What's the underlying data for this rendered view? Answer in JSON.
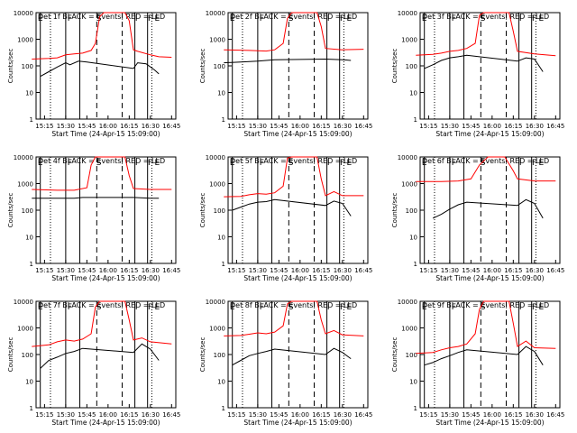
{
  "chart_data": {
    "type": "line",
    "layout": "3x3 grid of panels",
    "yscale": "log",
    "ylim": [
      1,
      10000
    ],
    "yticks": [
      "1",
      "10",
      "100",
      "1000",
      "10000"
    ],
    "ylabel": "Counts/sec",
    "xlabel": "Start Time (24-Apr-15 15:09:00)",
    "xticks": [
      "15:15",
      "15:30",
      "15:45",
      "16:00",
      "16:15",
      "16:30",
      "16:45"
    ],
    "legend_series": [
      {
        "name": "Events",
        "color": "#000000"
      },
      {
        "name": "LLD",
        "color": "#ff0000"
      }
    ],
    "markers": {
      "E": "15:09",
      "F": "15:30",
      "S": "15:52",
      "I": "16:19",
      "E2": "16:28"
    },
    "panels": [
      {
        "title": "Det 1f BLACK = Events, RED = LLD",
        "red": [
          [
            15.1,
            180
          ],
          [
            15.3,
            190
          ],
          [
            15.4,
            200
          ],
          [
            15.5,
            260
          ],
          [
            15.6,
            280
          ],
          [
            15.7,
            300
          ],
          [
            15.8,
            380
          ],
          [
            15.85,
            700
          ],
          [
            15.9,
            7000
          ],
          [
            15.95,
            10000
          ],
          [
            16.2,
            10000
          ],
          [
            16.25,
            5000
          ],
          [
            16.3,
            400
          ],
          [
            16.35,
            350
          ],
          [
            16.5,
            260
          ],
          [
            16.6,
            220
          ],
          [
            16.75,
            210
          ]
        ],
        "black": [
          [
            15.2,
            40
          ],
          [
            15.3,
            60
          ],
          [
            15.4,
            90
          ],
          [
            15.5,
            130
          ],
          [
            15.55,
            110
          ],
          [
            15.65,
            150
          ],
          [
            15.75,
            140
          ],
          [
            16.3,
            80
          ],
          [
            16.35,
            130
          ],
          [
            16.45,
            120
          ],
          [
            16.55,
            70
          ],
          [
            16.6,
            50
          ]
        ]
      },
      {
        "title": "Det 2f BLACK = Events, RED = LLD",
        "red": [
          [
            15.1,
            400
          ],
          [
            15.4,
            380
          ],
          [
            15.6,
            360
          ],
          [
            15.7,
            400
          ],
          [
            15.8,
            700
          ],
          [
            15.85,
            6000
          ],
          [
            15.9,
            10000
          ],
          [
            16.2,
            10000
          ],
          [
            16.25,
            3000
          ],
          [
            16.3,
            450
          ],
          [
            16.5,
            400
          ],
          [
            16.75,
            420
          ]
        ],
        "black": [
          [
            15.1,
            130
          ],
          [
            15.3,
            140
          ],
          [
            15.5,
            150
          ],
          [
            15.7,
            170
          ],
          [
            16.3,
            180
          ],
          [
            16.5,
            170
          ],
          [
            16.6,
            160
          ]
        ]
      },
      {
        "title": "Det 3f BLACK = Events, RED = LLD",
        "red": [
          [
            15.1,
            250
          ],
          [
            15.3,
            270
          ],
          [
            15.4,
            300
          ],
          [
            15.5,
            350
          ],
          [
            15.6,
            380
          ],
          [
            15.7,
            450
          ],
          [
            15.8,
            700
          ],
          [
            15.85,
            8000
          ],
          [
            15.9,
            10000
          ],
          [
            16.2,
            10000
          ],
          [
            16.25,
            2000
          ],
          [
            16.3,
            350
          ],
          [
            16.5,
            280
          ],
          [
            16.75,
            240
          ]
        ],
        "black": [
          [
            15.2,
            80
          ],
          [
            15.3,
            110
          ],
          [
            15.4,
            160
          ],
          [
            15.5,
            200
          ],
          [
            15.6,
            220
          ],
          [
            15.7,
            250
          ],
          [
            16.3,
            150
          ],
          [
            16.4,
            200
          ],
          [
            16.5,
            180
          ],
          [
            16.6,
            60
          ]
        ]
      },
      {
        "title": "Det 4f BLACK = Events, RED = LLD",
        "red": [
          [
            15.1,
            600
          ],
          [
            15.4,
            560
          ],
          [
            15.6,
            560
          ],
          [
            15.75,
            700
          ],
          [
            15.8,
            5000
          ],
          [
            15.85,
            10000
          ],
          [
            16.2,
            10000
          ],
          [
            16.25,
            2000
          ],
          [
            16.3,
            650
          ],
          [
            16.5,
            600
          ],
          [
            16.75,
            600
          ]
        ],
        "black": [
          [
            15.1,
            280
          ],
          [
            15.4,
            280
          ],
          [
            15.6,
            280
          ],
          [
            15.7,
            300
          ],
          [
            16.3,
            300
          ],
          [
            16.5,
            280
          ],
          [
            16.6,
            280
          ]
        ]
      },
      {
        "title": "Det 5f BLACK = Events, RED = LLD",
        "red": [
          [
            15.1,
            320
          ],
          [
            15.3,
            330
          ],
          [
            15.4,
            380
          ],
          [
            15.5,
            420
          ],
          [
            15.6,
            400
          ],
          [
            15.7,
            450
          ],
          [
            15.8,
            800
          ],
          [
            15.85,
            9000
          ],
          [
            15.9,
            10000
          ],
          [
            16.2,
            10000
          ],
          [
            16.25,
            1500
          ],
          [
            16.3,
            350
          ],
          [
            16.4,
            500
          ],
          [
            16.5,
            350
          ],
          [
            16.75,
            350
          ]
        ],
        "black": [
          [
            15.2,
            100
          ],
          [
            15.3,
            130
          ],
          [
            15.4,
            170
          ],
          [
            15.5,
            200
          ],
          [
            15.6,
            210
          ],
          [
            15.7,
            250
          ],
          [
            16.3,
            150
          ],
          [
            16.4,
            220
          ],
          [
            16.5,
            180
          ],
          [
            16.6,
            60
          ]
        ]
      },
      {
        "title": "Det 6f BLACK = Events, RED = LLD",
        "red": [
          [
            15.1,
            1200
          ],
          [
            15.4,
            1200
          ],
          [
            15.6,
            1250
          ],
          [
            15.75,
            1500
          ],
          [
            15.85,
            5000
          ],
          [
            15.95,
            10000
          ],
          [
            16.15,
            10000
          ],
          [
            16.25,
            3000
          ],
          [
            16.3,
            1500
          ],
          [
            16.5,
            1250
          ],
          [
            16.75,
            1250
          ]
        ],
        "black": [
          [
            15.3,
            50
          ],
          [
            15.4,
            70
          ],
          [
            15.5,
            110
          ],
          [
            15.6,
            160
          ],
          [
            15.7,
            200
          ],
          [
            16.3,
            150
          ],
          [
            16.4,
            250
          ],
          [
            16.5,
            180
          ],
          [
            16.6,
            50
          ]
        ]
      },
      {
        "title": "Det 7f BLACK = Events, RED = LLD",
        "red": [
          [
            15.1,
            200
          ],
          [
            15.3,
            230
          ],
          [
            15.4,
            300
          ],
          [
            15.5,
            350
          ],
          [
            15.6,
            320
          ],
          [
            15.7,
            380
          ],
          [
            15.8,
            600
          ],
          [
            15.85,
            6000
          ],
          [
            15.9,
            10000
          ],
          [
            16.2,
            10000
          ],
          [
            16.25,
            2000
          ],
          [
            16.3,
            350
          ],
          [
            16.4,
            420
          ],
          [
            16.5,
            300
          ],
          [
            16.75,
            250
          ]
        ],
        "black": [
          [
            15.2,
            30
          ],
          [
            15.3,
            60
          ],
          [
            15.4,
            80
          ],
          [
            15.5,
            110
          ],
          [
            15.6,
            130
          ],
          [
            15.7,
            170
          ],
          [
            16.3,
            120
          ],
          [
            16.4,
            250
          ],
          [
            16.5,
            160
          ],
          [
            16.6,
            60
          ]
        ]
      },
      {
        "title": "Det 8f BLACK = Events, RED = LLD",
        "red": [
          [
            15.1,
            500
          ],
          [
            15.3,
            520
          ],
          [
            15.4,
            580
          ],
          [
            15.5,
            650
          ],
          [
            15.6,
            600
          ],
          [
            15.7,
            700
          ],
          [
            15.8,
            1200
          ],
          [
            15.85,
            8000
          ],
          [
            15.9,
            10000
          ],
          [
            16.2,
            10000
          ],
          [
            16.25,
            2000
          ],
          [
            16.3,
            600
          ],
          [
            16.4,
            800
          ],
          [
            16.5,
            550
          ],
          [
            16.75,
            500
          ]
        ],
        "black": [
          [
            15.2,
            40
          ],
          [
            15.3,
            60
          ],
          [
            15.4,
            90
          ],
          [
            15.5,
            110
          ],
          [
            15.6,
            130
          ],
          [
            15.7,
            160
          ],
          [
            16.3,
            100
          ],
          [
            16.4,
            170
          ],
          [
            16.5,
            120
          ],
          [
            16.6,
            70
          ]
        ]
      },
      {
        "title": "Det 9f BLACK = Events, RED = LLD",
        "red": [
          [
            15.1,
            110
          ],
          [
            15.3,
            120
          ],
          [
            15.4,
            150
          ],
          [
            15.5,
            180
          ],
          [
            15.6,
            200
          ],
          [
            15.7,
            250
          ],
          [
            15.8,
            600
          ],
          [
            15.85,
            5000
          ],
          [
            15.9,
            10000
          ],
          [
            16.2,
            10000
          ],
          [
            16.25,
            1500
          ],
          [
            16.3,
            200
          ],
          [
            16.4,
            320
          ],
          [
            16.5,
            180
          ],
          [
            16.75,
            170
          ]
        ],
        "black": [
          [
            15.2,
            40
          ],
          [
            15.3,
            50
          ],
          [
            15.4,
            70
          ],
          [
            15.5,
            90
          ],
          [
            15.6,
            120
          ],
          [
            15.7,
            150
          ],
          [
            16.3,
            100
          ],
          [
            16.4,
            200
          ],
          [
            16.5,
            130
          ],
          [
            16.6,
            40
          ]
        ]
      }
    ]
  }
}
